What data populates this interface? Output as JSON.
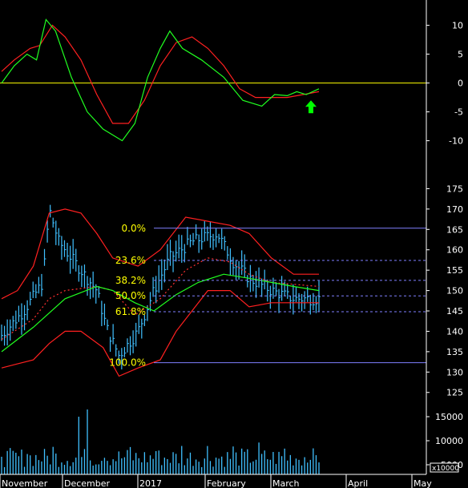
{
  "chart_data": [
    {
      "type": "line",
      "panel": "oscillator",
      "ylim": [
        -12,
        13
      ],
      "yticks": [
        "10",
        "5",
        "0",
        "-5",
        "-10"
      ],
      "ytick_values": [
        10,
        5,
        0,
        -5,
        -10
      ],
      "zero_line_value": 0,
      "zero_line_color": "#ffff00",
      "signal_marker": {
        "direction": "up",
        "color": "#00ff00",
        "t": 0.91,
        "y": -3
      }
    },
    {
      "type": "candlestick",
      "panel": "price",
      "ylim": [
        122,
        180
      ],
      "yticks": [
        "175",
        "170",
        "165",
        "160",
        "155",
        "150",
        "145",
        "140",
        "135",
        "130",
        "125"
      ],
      "ytick_values": [
        175,
        170,
        165,
        160,
        155,
        150,
        145,
        140,
        135,
        130,
        125
      ],
      "bar_color": "#40c0ff",
      "fib_levels": [
        {
          "label": "0.0%",
          "value": 165.3,
          "style": "solid"
        },
        {
          "label": "23.6%",
          "value": 157.4,
          "style": "dashed"
        },
        {
          "label": "38.2%",
          "value": 152.5,
          "style": "dashed"
        },
        {
          "label": "50.0%",
          "value": 148.7,
          "style": "dashed"
        },
        {
          "label": "61.8%",
          "value": 144.8,
          "style": "dashed"
        },
        {
          "label": "100.0%",
          "value": 132.3,
          "style": "solid"
        }
      ],
      "fib_color": "#ffff00",
      "fib_line_color": "#8080ff"
    },
    {
      "type": "bar",
      "panel": "volume",
      "ylim": [
        3000,
        17500
      ],
      "yticks": [
        "15000",
        "10000",
        "5000"
      ],
      "ytick_values": [
        15000,
        10000,
        5000
      ],
      "unit_label": "x10000",
      "bar_color": "#40c0ff"
    }
  ],
  "x_axis": {
    "labels": [
      "November",
      "December",
      "2017",
      "February",
      "March",
      "April",
      "May"
    ]
  },
  "colors": {
    "background": "#000000",
    "red_line": "#ff2020",
    "green_line": "#20ff20",
    "dotted_ma": "#ff3030",
    "grid": "#ffffff"
  }
}
